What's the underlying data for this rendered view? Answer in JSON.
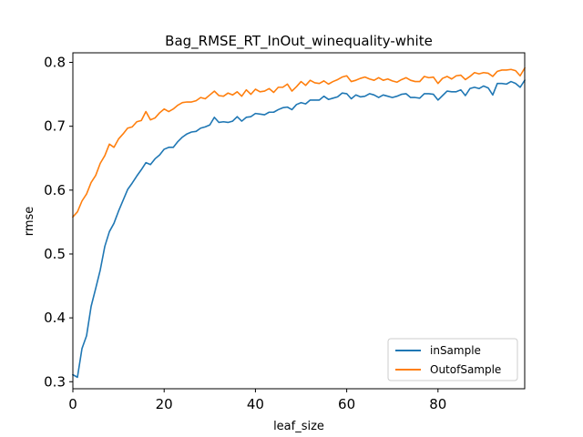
{
  "chart_data": {
    "type": "line",
    "title": "Bag_RMSE_RT_InOut_winequality-white",
    "xlabel": "leaf_size",
    "ylabel": "rmse",
    "xlim": [
      0,
      99
    ],
    "ylim": [
      0.289,
      0.815
    ],
    "x_ticks": [
      0,
      20,
      40,
      60,
      80
    ],
    "y_ticks": [
      0.3,
      0.4,
      0.5,
      0.6,
      0.7,
      0.8
    ],
    "x_tick_labels": [
      "0",
      "20",
      "40",
      "60",
      "80"
    ],
    "y_tick_labels": [
      "0.3",
      "0.4",
      "0.5",
      "0.6",
      "0.7",
      "0.8"
    ],
    "grid": false,
    "legend_position": "lower-right",
    "series": [
      {
        "name": "inSample",
        "color": "#1f77b4",
        "x": [
          0,
          1,
          2,
          3,
          4,
          5,
          6,
          7,
          8,
          9,
          10,
          11,
          12,
          13,
          14,
          15,
          16,
          17,
          18,
          19,
          20,
          21,
          22,
          23,
          24,
          25,
          26,
          27,
          28,
          29,
          30,
          31,
          32,
          33,
          34,
          35,
          36,
          37,
          38,
          39,
          40,
          41,
          42,
          43,
          44,
          45,
          46,
          47,
          48,
          49,
          50,
          51,
          52,
          53,
          54,
          55,
          56,
          57,
          58,
          59,
          60,
          61,
          62,
          63,
          64,
          65,
          66,
          67,
          68,
          69,
          70,
          71,
          72,
          73,
          74,
          75,
          76,
          77,
          78,
          79,
          80,
          81,
          82,
          83,
          84,
          85,
          86,
          87,
          88,
          89,
          90,
          91,
          92,
          93,
          94,
          95,
          96,
          97,
          98,
          99
        ],
        "values": [
          0.311,
          0.307,
          0.352,
          0.372,
          0.418,
          0.446,
          0.475,
          0.512,
          0.535,
          0.548,
          0.567,
          0.584,
          0.601,
          0.611,
          0.622,
          0.632,
          0.643,
          0.64,
          0.649,
          0.655,
          0.664,
          0.667,
          0.667,
          0.676,
          0.683,
          0.688,
          0.691,
          0.692,
          0.697,
          0.699,
          0.702,
          0.714,
          0.706,
          0.707,
          0.706,
          0.708,
          0.715,
          0.708,
          0.714,
          0.715,
          0.72,
          0.719,
          0.718,
          0.722,
          0.722,
          0.726,
          0.729,
          0.73,
          0.726,
          0.734,
          0.737,
          0.735,
          0.741,
          0.741,
          0.741,
          0.747,
          0.742,
          0.744,
          0.746,
          0.752,
          0.751,
          0.743,
          0.749,
          0.746,
          0.747,
          0.751,
          0.749,
          0.745,
          0.749,
          0.747,
          0.745,
          0.747,
          0.75,
          0.751,
          0.745,
          0.745,
          0.744,
          0.751,
          0.751,
          0.75,
          0.741,
          0.748,
          0.755,
          0.754,
          0.754,
          0.757,
          0.748,
          0.759,
          0.761,
          0.759,
          0.763,
          0.76,
          0.749,
          0.767,
          0.767,
          0.766,
          0.77,
          0.767,
          0.761,
          0.772
        ]
      },
      {
        "name": "OutofSample",
        "color": "#ff7f0e",
        "x": [
          0,
          1,
          2,
          3,
          4,
          5,
          6,
          7,
          8,
          9,
          10,
          11,
          12,
          13,
          14,
          15,
          16,
          17,
          18,
          19,
          20,
          21,
          22,
          23,
          24,
          25,
          26,
          27,
          28,
          29,
          30,
          31,
          32,
          33,
          34,
          35,
          36,
          37,
          38,
          39,
          40,
          41,
          42,
          43,
          44,
          45,
          46,
          47,
          48,
          49,
          50,
          51,
          52,
          53,
          54,
          55,
          56,
          57,
          58,
          59,
          60,
          61,
          62,
          63,
          64,
          65,
          66,
          67,
          68,
          69,
          70,
          71,
          72,
          73,
          74,
          75,
          76,
          77,
          78,
          79,
          80,
          81,
          82,
          83,
          84,
          85,
          86,
          87,
          88,
          89,
          90,
          91,
          92,
          93,
          94,
          95,
          96,
          97,
          98,
          99
        ],
        "values": [
          0.558,
          0.566,
          0.583,
          0.594,
          0.612,
          0.623,
          0.642,
          0.654,
          0.672,
          0.667,
          0.68,
          0.688,
          0.697,
          0.699,
          0.707,
          0.709,
          0.723,
          0.71,
          0.713,
          0.721,
          0.727,
          0.723,
          0.727,
          0.733,
          0.737,
          0.738,
          0.738,
          0.74,
          0.745,
          0.743,
          0.749,
          0.755,
          0.748,
          0.747,
          0.752,
          0.749,
          0.754,
          0.747,
          0.757,
          0.75,
          0.758,
          0.754,
          0.755,
          0.759,
          0.753,
          0.761,
          0.761,
          0.766,
          0.755,
          0.762,
          0.77,
          0.764,
          0.772,
          0.768,
          0.767,
          0.771,
          0.766,
          0.77,
          0.773,
          0.777,
          0.779,
          0.77,
          0.772,
          0.775,
          0.777,
          0.774,
          0.772,
          0.776,
          0.772,
          0.774,
          0.771,
          0.769,
          0.773,
          0.776,
          0.772,
          0.77,
          0.77,
          0.778,
          0.776,
          0.777,
          0.767,
          0.775,
          0.778,
          0.774,
          0.779,
          0.78,
          0.773,
          0.778,
          0.784,
          0.782,
          0.784,
          0.783,
          0.778,
          0.786,
          0.788,
          0.788,
          0.789,
          0.787,
          0.779,
          0.791
        ]
      }
    ]
  }
}
